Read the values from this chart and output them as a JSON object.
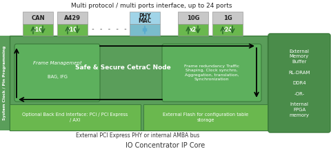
{
  "title_top": "Multi protocol / multi ports interface, up to 24 ports",
  "title_bottom": "IO Concentrator IP Core",
  "subtitle_bottom": "External PCI Express PHY or internal AMBA bus",
  "left_label": "System Clock / Pin Programming",
  "colors": {
    "dark_green": "#4a8c4a",
    "med_green": "#5a9e5a",
    "light_green": "#6ab84e",
    "inner_green": "#5db85d",
    "gray_box": "#c8c8c8",
    "light_blue": "#a0d4e8",
    "blue_arrow": "#5aaccf",
    "white": "#ffffff",
    "black": "#000000",
    "bg": "#ffffff",
    "border_green": "#3a7a3a"
  },
  "right_box_text": "External\nMemory\nBuffer\n\nRL-DRAM\n\nDDR4\n\n-OR-\n\nInternal\nFPGA\nmemory",
  "main_label": "Safe & Secure CetraC Node",
  "left_inner_title": "Frame Management",
  "left_inner_sub": "BAG, IFG",
  "right_inner_text": "Frame redundancy Traffic\nShaping, Clock synchro,\nAggregation, translation,\nSynchronization",
  "bottom_left_text": "Optional Back End Interface: PCI / PCI Express\n/ AXI",
  "bottom_right_text": "External Flash for configuration table\nstorage",
  "dots_text": "- - - - -"
}
